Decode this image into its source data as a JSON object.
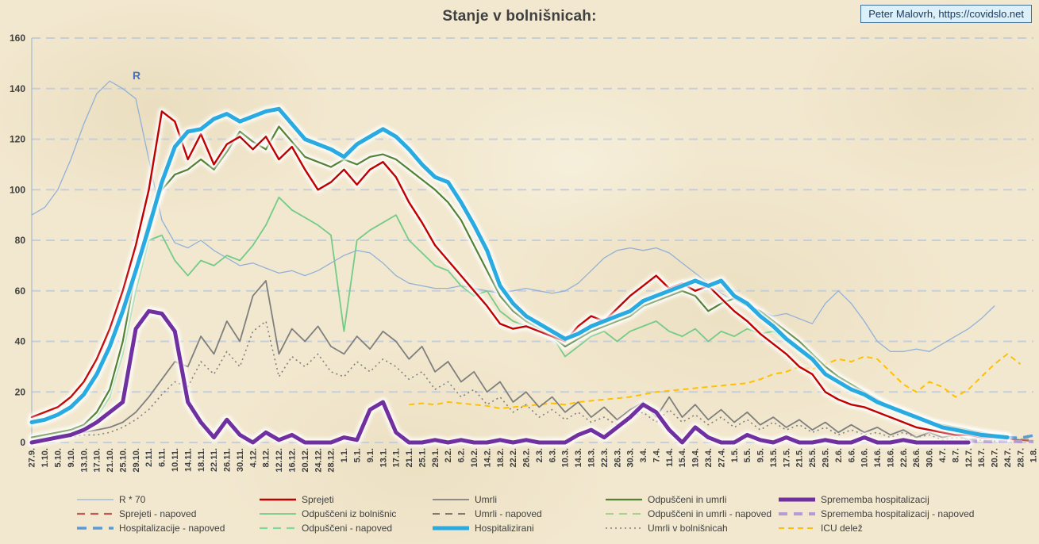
{
  "header": {
    "title": "Stanje v bolnišnicah:",
    "attribution": "Peter Malovrh, https://covidslo.net"
  },
  "annotation": {
    "r_label": "R"
  },
  "colors": {
    "background": "#F2E8CF",
    "grid": "#C8CED8",
    "axis": "#A9B9CC",
    "tick_text": "#3F3F3F",
    "title_text": "#3F3F3F",
    "annotation_blue": "#4472C4",
    "attribution_bg": "#DBF0F8",
    "attribution_border": "#41719C"
  },
  "chart_data": {
    "type": "line",
    "title": "Stanje v bolnišnicah:",
    "ylim": [
      0,
      160
    ],
    "yticks": [
      0,
      20,
      40,
      60,
      80,
      100,
      120,
      140,
      160
    ],
    "x_total_days": 308,
    "x_tick_step_days": 4,
    "grid": true,
    "legend_position": "bottom",
    "x_tick_labels": [
      "27.9.",
      "1.10.",
      "5.10.",
      "9.10.",
      "13.10.",
      "17.10.",
      "21.10.",
      "25.10.",
      "29.10.",
      "2.11.",
      "6.11.",
      "10.11.",
      "14.11.",
      "18.11.",
      "22.11.",
      "26.11.",
      "30.11.",
      "4.12.",
      "8.12.",
      "12.12.",
      "16.12.",
      "20.12.",
      "24.12.",
      "28.12.",
      "1.1.",
      "5.1.",
      "9.1.",
      "13.1.",
      "17.1.",
      "21.1.",
      "25.1.",
      "29.1.",
      "2.2.",
      "6.2.",
      "10.2.",
      "14.2.",
      "18.2.",
      "22.2.",
      "26.2.",
      "2.3.",
      "6.3.",
      "10.3.",
      "14.3.",
      "18.3.",
      "22.3.",
      "26.3.",
      "30.3.",
      "3.4.",
      "7.4.",
      "11.4.",
      "15.4.",
      "19.4.",
      "23.4.",
      "27.4.",
      "1.5.",
      "5.5.",
      "9.5.",
      "13.5.",
      "17.5.",
      "21.5.",
      "25.5.",
      "29.5.",
      "2.6.",
      "6.6.",
      "10.6.",
      "14.6.",
      "18.6.",
      "22.6.",
      "26.6.",
      "30.6.",
      "4.7.",
      "8.7.",
      "12.7.",
      "16.7.",
      "20.7.",
      "24.7.",
      "28.7.",
      "1.8."
    ],
    "series": [
      {
        "name": "R * 70",
        "color": "#92B1D8",
        "width": 1.3,
        "dash": "",
        "glow": false,
        "start": 0,
        "step": 4,
        "values": [
          90,
          93,
          100,
          112,
          126,
          138,
          143,
          140,
          136,
          112,
          88,
          79,
          77,
          80,
          76,
          73,
          70,
          71,
          69,
          67,
          68,
          66,
          68,
          71,
          74,
          76,
          75,
          71,
          66,
          63,
          62,
          61,
          61,
          62,
          61,
          60,
          59,
          60,
          61,
          60,
          59,
          60,
          63,
          68,
          73,
          76,
          77,
          76,
          77,
          75,
          71,
          67,
          63,
          59,
          56,
          54,
          52,
          50,
          51,
          49,
          47,
          55,
          60,
          55,
          48,
          40,
          36,
          36,
          37,
          36,
          39,
          42,
          45,
          49,
          54
        ]
      },
      {
        "name": "ICU delež",
        "color": "#FFC000",
        "width": 2,
        "dash": "7 5",
        "glow": false,
        "start": 116,
        "step": 4,
        "values": [
          15,
          15.5,
          15,
          16,
          15.5,
          15,
          14.5,
          13.5,
          14,
          14.5,
          15,
          15.5,
          15,
          16,
          16.5,
          17,
          17.5,
          18,
          19,
          20,
          20.5,
          21,
          21.5,
          22,
          22.5,
          23,
          23.5,
          25,
          27,
          28,
          30,
          29,
          31,
          33,
          32,
          34,
          33,
          28,
          23,
          20,
          24,
          22,
          18,
          21,
          26,
          31,
          35,
          31
        ]
      },
      {
        "name": "Umrli v bolnišnicah",
        "color": "#7F7F7F",
        "width": 1.6,
        "dash": "2 4",
        "glow": false,
        "start": 0,
        "step": 4,
        "values": [
          1,
          1,
          2,
          2,
          3,
          3,
          4,
          6,
          9,
          13,
          19,
          24,
          22,
          32,
          27,
          36,
          30,
          44,
          48,
          26,
          34,
          30,
          35,
          28,
          26,
          32,
          28,
          33,
          30,
          25,
          28,
          21,
          24,
          18,
          21,
          15,
          18,
          12,
          15,
          10,
          13,
          9,
          12,
          8,
          10,
          7,
          10,
          12,
          8,
          13,
          8,
          11,
          7,
          10,
          6,
          9,
          5,
          8,
          5,
          7,
          4,
          6,
          3,
          5,
          3,
          4,
          2,
          4,
          2,
          3,
          1,
          2,
          1,
          1,
          0.5,
          0.5
        ]
      },
      {
        "name": "Umrli",
        "color": "#7F7F7F",
        "width": 1.8,
        "dash": "",
        "glow": false,
        "start": 0,
        "step": 4,
        "values": [
          2,
          2,
          3,
          3,
          4,
          5,
          6,
          8,
          12,
          18,
          25,
          32,
          30,
          42,
          35,
          48,
          40,
          58,
          64,
          35,
          45,
          40,
          46,
          38,
          35,
          42,
          37,
          44,
          40,
          33,
          38,
          28,
          32,
          24,
          28,
          20,
          24,
          16,
          20,
          14,
          18,
          12,
          16,
          10,
          14,
          9,
          13,
          16,
          10,
          18,
          10,
          15,
          9,
          13,
          8,
          12,
          7,
          10,
          6,
          9,
          5,
          8,
          4,
          7,
          4,
          6,
          3,
          5,
          2,
          4,
          2,
          3,
          1,
          2,
          1,
          1.5,
          1
        ]
      },
      {
        "name": "Umrli - napoved",
        "color": "#595959",
        "width": 1.6,
        "dash": "9 7",
        "glow": false,
        "start": 304,
        "step": 4,
        "values": [
          1,
          0.5
        ]
      },
      {
        "name": "Odpuščeni iz bolnišnic",
        "color": "#74CB88",
        "width": 1.8,
        "dash": "",
        "glow": false,
        "start": 0,
        "step": 4,
        "values": [
          1,
          2,
          3,
          4,
          6,
          10,
          18,
          35,
          60,
          80,
          82,
          72,
          66,
          72,
          70,
          74,
          72,
          78,
          86,
          97,
          92,
          89,
          86,
          82,
          44,
          80,
          84,
          87,
          90,
          80,
          75,
          70,
          68,
          62,
          58,
          60,
          52,
          48,
          46,
          48,
          42,
          34,
          38,
          42,
          44,
          40,
          44,
          46,
          48,
          44,
          42,
          45,
          40,
          44,
          42,
          45,
          43,
          44,
          40,
          36,
          32,
          28,
          24,
          21,
          18,
          15,
          13,
          11,
          9,
          8,
          6,
          5,
          4,
          3,
          2.5,
          2
        ]
      },
      {
        "name": "Odpuščeni - napoved",
        "color": "#7FD99A",
        "width": 2.2,
        "dash": "10 7",
        "glow": false,
        "start": 300,
        "step": 4,
        "values": [
          2,
          1.2,
          1.5
        ]
      },
      {
        "name": "Odpuščeni in umrli",
        "color": "#538135",
        "width": 2.2,
        "dash": "",
        "glow": true,
        "start": 0,
        "step": 4,
        "values": [
          2,
          3,
          4,
          5,
          7,
          12,
          21,
          40,
          68,
          88,
          100,
          106,
          108,
          112,
          108,
          115,
          123,
          119,
          116,
          125,
          119,
          113,
          111,
          109,
          112,
          110,
          113,
          114,
          112,
          108,
          104,
          100,
          95,
          88,
          78,
          68,
          58,
          52,
          48,
          45,
          42,
          38,
          41,
          44,
          46,
          48,
          50,
          54,
          56,
          58,
          60,
          58,
          52,
          55,
          57,
          54,
          52,
          48,
          44,
          40,
          35,
          30,
          26,
          23,
          20,
          17,
          14,
          12,
          10,
          8,
          7,
          6,
          5,
          4,
          3,
          2.5
        ]
      },
      {
        "name": "Odpuščeni in umrli - napoved",
        "color": "#A9D18E",
        "width": 2,
        "dash": "10 7",
        "glow": false,
        "start": 300,
        "step": 4,
        "values": [
          2.5,
          1.5,
          1
        ]
      },
      {
        "name": "Sprejeti - napoved",
        "color": "#C55A5A",
        "width": 2.2,
        "dash": "10 7",
        "glow": false,
        "start": 300,
        "step": 4,
        "values": [
          1.5,
          1,
          0.6
        ]
      },
      {
        "name": "Sprejeti",
        "color": "#C00000",
        "width": 2.4,
        "dash": "",
        "glow": true,
        "start": 0,
        "step": 4,
        "values": [
          10,
          12,
          14,
          18,
          24,
          33,
          45,
          60,
          78,
          100,
          131,
          127,
          112,
          122,
          110,
          118,
          121,
          116,
          121,
          112,
          117,
          108,
          100,
          103,
          108,
          102,
          108,
          111,
          105,
          95,
          87,
          78,
          72,
          66,
          60,
          54,
          47,
          45,
          46,
          44,
          42,
          40,
          46,
          50,
          48,
          53,
          58,
          62,
          66,
          61,
          63,
          60,
          62,
          57,
          52,
          48,
          43,
          39,
          35,
          30,
          27,
          20,
          17,
          15,
          14,
          12,
          10,
          8,
          6,
          5,
          4,
          3,
          3,
          2,
          2,
          1.5
        ]
      },
      {
        "name": "Sprememba hospitalizacij - napoved",
        "color": "#B49BD6",
        "width": 4,
        "dash": "11 8",
        "glow": false,
        "start": 288,
        "step": 4,
        "values": [
          0.5,
          0.4,
          0.3,
          0.5,
          0.3,
          0.4
        ]
      },
      {
        "name": "Sprememba hospitalizacij",
        "color": "#7030A0",
        "width": 5,
        "dash": "",
        "glow": true,
        "start": 0,
        "step": 4,
        "values": [
          0,
          1,
          2,
          3,
          5,
          8,
          12,
          16,
          45,
          52,
          51,
          44,
          16,
          8,
          2,
          9,
          3,
          0,
          4,
          1,
          3,
          0,
          0,
          0,
          2,
          1,
          13,
          16,
          4,
          0,
          0,
          1,
          0,
          1,
          0,
          0,
          1,
          0,
          1,
          0,
          0,
          0,
          3,
          5,
          2,
          6,
          10,
          15,
          12,
          5,
          0,
          6,
          2,
          0,
          0,
          3,
          1,
          0,
          2,
          0,
          0,
          1,
          0,
          0,
          2,
          0,
          0,
          1,
          0,
          0,
          0,
          0,
          0
        ]
      },
      {
        "name": "Hospitalizacije - napoved",
        "color": "#5B9BD5",
        "width": 3.5,
        "dash": "12 8",
        "glow": false,
        "start": 300,
        "step": 4,
        "values": [
          2,
          1.8,
          2.8
        ]
      },
      {
        "name": "Hospitalizirani",
        "color": "#29ABE2",
        "width": 5,
        "dash": "",
        "glow": true,
        "start": 0,
        "step": 4,
        "values": [
          8,
          9,
          11,
          14,
          19,
          27,
          38,
          52,
          68,
          85,
          103,
          117,
          123,
          124,
          128,
          130,
          127,
          129,
          131,
          132,
          126,
          120,
          118,
          116,
          113,
          118,
          121,
          124,
          121,
          116,
          110,
          105,
          103,
          95,
          86,
          76,
          62,
          55,
          50,
          47,
          44,
          41,
          43,
          46,
          48,
          50,
          52,
          56,
          58,
          60,
          62,
          64,
          62,
          64,
          58,
          55,
          50,
          46,
          41,
          37,
          33,
          27,
          24,
          21,
          19,
          16,
          14,
          12,
          10,
          8,
          6,
          5,
          4,
          3,
          2.5,
          2
        ]
      }
    ],
    "legend_columns": [
      [
        "R * 70",
        "Sprejeti - napoved",
        "Hospitalizacije - napoved"
      ],
      [
        "Sprejeti",
        "Odpuščeni iz bolnišnic",
        "Odpuščeni - napoved"
      ],
      [
        "Umrli",
        "Umrli - napoved",
        "Hospitalizirani"
      ],
      [
        "Odpuščeni in umrli",
        "Odpuščeni in umrli - napoved",
        "Umrli v bolnišnicah"
      ],
      [
        "Sprememba hospitalizacij",
        "Sprememba hospitalizacij - napoved",
        "ICU delež"
      ]
    ]
  }
}
